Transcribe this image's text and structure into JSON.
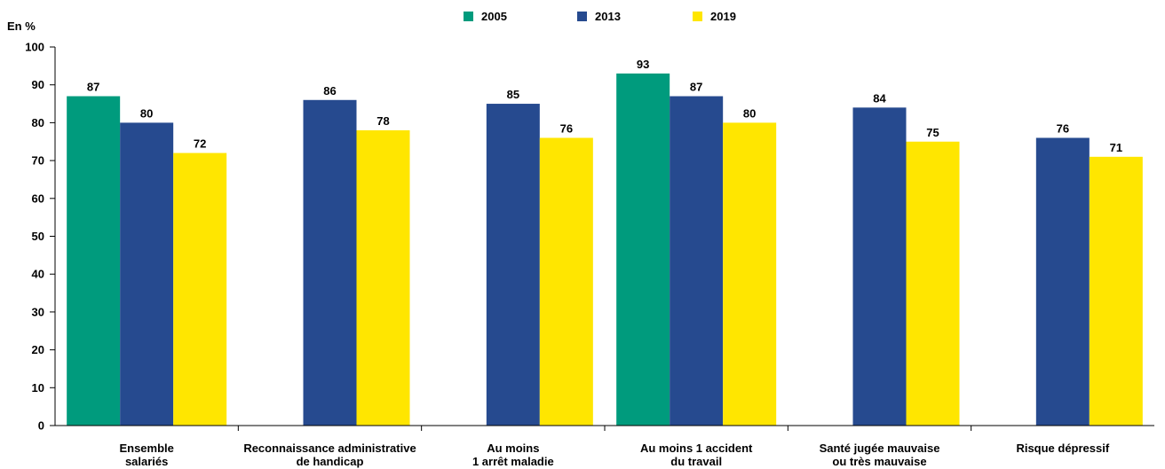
{
  "chart_data": {
    "type": "bar",
    "unit_label": "En %",
    "categories": [
      [
        "Ensemble",
        "salariés"
      ],
      [
        "Reconnaissance administrative",
        "de handicap"
      ],
      [
        "Au moins",
        "1 arrêt maladie"
      ],
      [
        "Au moins 1 accident",
        "du travail"
      ],
      [
        "Santé jugée mauvaise",
        "ou très mauvaise"
      ],
      [
        "Risque dépressif"
      ]
    ],
    "series": [
      {
        "name": "2005",
        "color": "#009B7D",
        "values": [
          87,
          null,
          null,
          93,
          null,
          null
        ]
      },
      {
        "name": "2013",
        "color": "#264A8F",
        "values": [
          80,
          86,
          85,
          87,
          84,
          76
        ]
      },
      {
        "name": "2019",
        "color": "#FFE600",
        "values": [
          72,
          78,
          76,
          80,
          75,
          71
        ]
      }
    ],
    "ylim": [
      0,
      100
    ],
    "yticks": [
      0,
      10,
      20,
      30,
      40,
      50,
      60,
      70,
      80,
      90,
      100
    ],
    "legend_position": "top-center",
    "grid": false
  }
}
